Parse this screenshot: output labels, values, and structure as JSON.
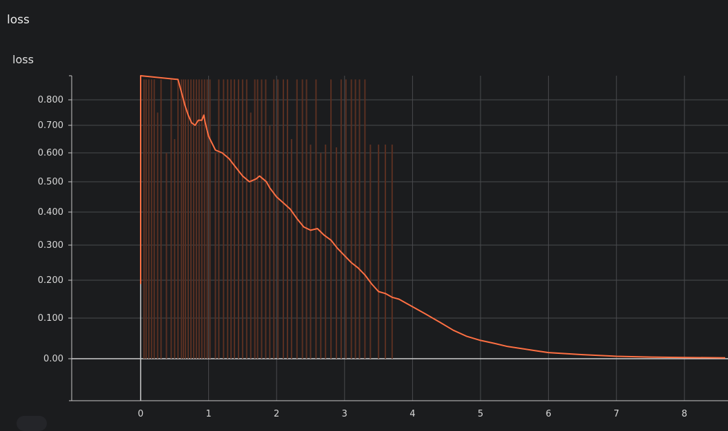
{
  "section": {
    "title": "loss"
  },
  "card": {
    "title": "loss"
  },
  "colors": {
    "background": "#1b1c1e",
    "grid": "#4a4b4e",
    "axis": "#c8c8c8",
    "smoothed": "#ff7043",
    "raw": "#5a3022",
    "text": "#d8d8d8"
  },
  "chart_data": {
    "type": "line",
    "title": "loss",
    "xlabel": "",
    "ylabel": "",
    "xlim": [
      -1,
      8.6
    ],
    "ylim": [
      -0.13,
      0.88
    ],
    "x_ticks": [
      0,
      1,
      2,
      3,
      4,
      5,
      6,
      7,
      8
    ],
    "x_tick_labels": [
      "0",
      "1",
      "2",
      "3",
      "4",
      "5",
      "6",
      "7",
      "8"
    ],
    "y_ticks": [
      0.0,
      0.1,
      0.2,
      0.3,
      0.4,
      0.5,
      0.6,
      0.7,
      0.8
    ],
    "y_tick_labels": [
      "0.00",
      "0.100",
      "0.200",
      "0.300",
      "0.400",
      "0.500",
      "0.600",
      "0.700",
      "0.800"
    ],
    "grid": true,
    "series": [
      {
        "role": "smoothed",
        "x": [
          0.0,
          0.0,
          0.0,
          0.55,
          0.6,
          0.65,
          0.7,
          0.75,
          0.8,
          0.85,
          0.9,
          0.93,
          0.95,
          1.0,
          1.1,
          1.2,
          1.3,
          1.4,
          1.5,
          1.6,
          1.7,
          1.75,
          1.8,
          1.85,
          1.9,
          2.0,
          2.1,
          2.2,
          2.3,
          2.4,
          2.5,
          2.6,
          2.7,
          2.8,
          2.9,
          3.0,
          3.1,
          3.2,
          3.3,
          3.4,
          3.5,
          3.6,
          3.7,
          3.8,
          3.9,
          4.0,
          4.2,
          4.4,
          4.6,
          4.8,
          5.0,
          5.2,
          5.4,
          5.6,
          5.8,
          6.0,
          6.5,
          7.0,
          7.5,
          8.0,
          8.6
        ],
        "y": [
          0.19,
          0.55,
          0.95,
          0.88,
          0.83,
          0.78,
          0.74,
          0.71,
          0.7,
          0.72,
          0.72,
          0.74,
          0.71,
          0.66,
          0.61,
          0.6,
          0.58,
          0.55,
          0.52,
          0.5,
          0.51,
          0.52,
          0.51,
          0.5,
          0.48,
          0.45,
          0.43,
          0.41,
          0.38,
          0.355,
          0.345,
          0.35,
          0.33,
          0.315,
          0.29,
          0.27,
          0.25,
          0.235,
          0.215,
          0.19,
          0.17,
          0.165,
          0.155,
          0.15,
          0.14,
          0.13,
          0.11,
          0.09,
          0.07,
          0.055,
          0.045,
          0.038,
          0.03,
          0.025,
          0.02,
          0.015,
          0.01,
          0.006,
          0.004,
          0.003,
          0.002
        ]
      },
      {
        "role": "raw",
        "x": [
          0.05,
          0.08,
          0.12,
          0.16,
          0.2,
          0.25,
          0.3,
          0.38,
          0.45,
          0.5,
          0.55,
          0.6,
          0.63,
          0.66,
          0.7,
          0.74,
          0.78,
          0.82,
          0.86,
          0.9,
          0.94,
          0.98,
          1.02,
          1.1,
          1.15,
          1.22,
          1.28,
          1.33,
          1.38,
          1.44,
          1.5,
          1.56,
          1.62,
          1.68,
          1.72,
          1.78,
          1.84,
          1.9,
          1.96,
          2.02,
          2.1,
          2.16,
          2.22,
          2.3,
          2.38,
          2.44,
          2.5,
          2.58,
          2.65,
          2.72,
          2.8,
          2.88,
          2.95,
          3.02,
          3.1,
          3.16,
          3.22,
          3.3,
          3.38,
          3.5,
          3.6,
          3.7
        ],
        "y": [
          0.88,
          0.88,
          0.88,
          0.88,
          0.88,
          0.75,
          0.88,
          0.6,
          0.88,
          0.65,
          0.88,
          0.88,
          0.88,
          0.88,
          0.88,
          0.88,
          0.88,
          0.88,
          0.88,
          0.88,
          0.88,
          0.88,
          0.88,
          0.6,
          0.88,
          0.88,
          0.88,
          0.88,
          0.88,
          0.88,
          0.88,
          0.88,
          0.75,
          0.88,
          0.88,
          0.88,
          0.88,
          0.7,
          0.88,
          0.88,
          0.88,
          0.88,
          0.65,
          0.88,
          0.88,
          0.88,
          0.63,
          0.88,
          0.6,
          0.63,
          0.88,
          0.62,
          0.88,
          0.88,
          0.88,
          0.88,
          0.88,
          0.88,
          0.63,
          0.63,
          0.63,
          0.63
        ]
      }
    ]
  }
}
